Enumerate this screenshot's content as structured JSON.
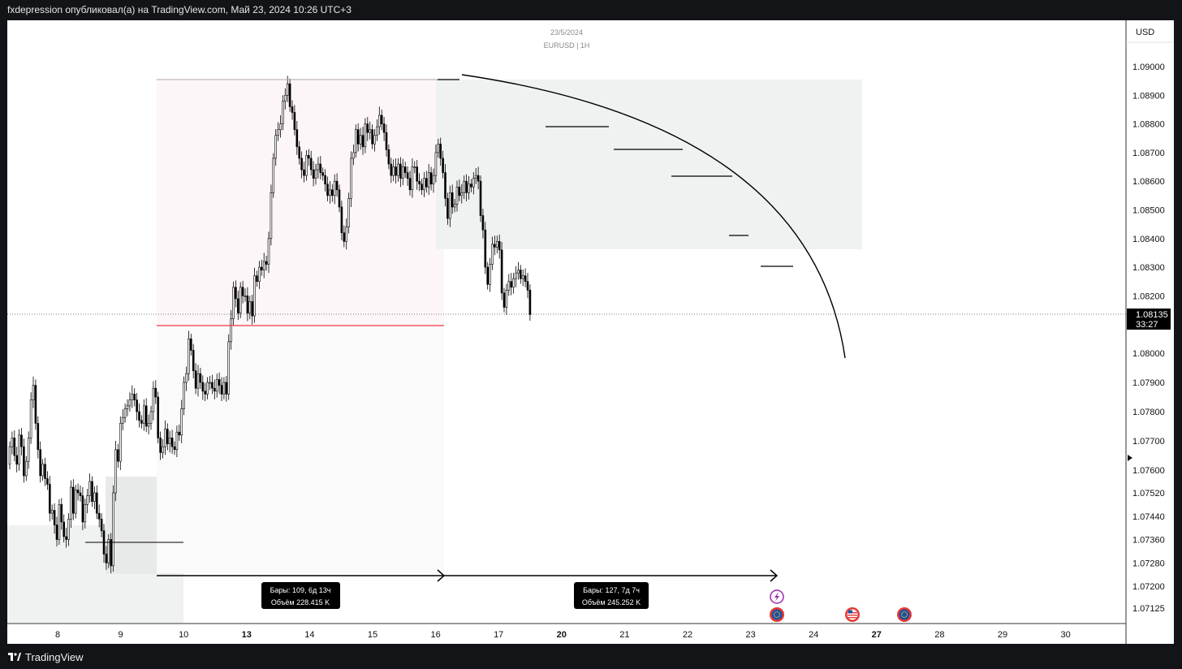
{
  "header": {
    "text": "fxdepression опубликовал(а) на TradingView.com, Май 23, 2024 10:26 UTC+3"
  },
  "footer": {
    "brand": "TradingView",
    "logo_icon": "tradingview-logo-icon"
  },
  "chart_data": {
    "type": "candlestick",
    "date": "23/5/2024",
    "symbol": "EURUSD | 1H",
    "currency": "USD",
    "y_ticks": [
      "1.09000",
      "1.08900",
      "1.08800",
      "1.08700",
      "1.08600",
      "1.08500",
      "1.08400",
      "1.08300",
      "1.08200",
      "1.08000",
      "1.07900",
      "1.07800",
      "1.07700",
      "1.07600",
      "1.07520",
      "1.07440",
      "1.07360",
      "1.07280",
      "1.07200",
      "1.07125"
    ],
    "x_ticks": [
      "8",
      "9",
      "10",
      "13",
      "14",
      "15",
      "16",
      "17",
      "20",
      "21",
      "22",
      "23",
      "24",
      "27",
      "28",
      "29",
      "30"
    ],
    "bold_x_ticks": [
      "13",
      "20",
      "27"
    ],
    "current_price": "1.08135",
    "countdown": "33:27",
    "candles_close": [
      1.0768,
      1.0771,
      1.0765,
      1.0762,
      1.0772,
      1.0768,
      1.0758,
      1.0763,
      1.0771,
      1.0784,
      1.0789,
      1.0776,
      1.0767,
      1.0758,
      1.0762,
      1.0757,
      1.0755,
      1.0745,
      1.0746,
      1.0741,
      1.0736,
      1.0748,
      1.0742,
      1.0737,
      1.0736,
      1.0743,
      1.0754,
      1.0745,
      1.0753,
      1.0752,
      1.0751,
      1.0742,
      1.0748,
      1.0751,
      1.0756,
      1.0749,
      1.0752,
      1.0745,
      1.0743,
      1.0739,
      1.0731,
      1.0728,
      1.0736,
      1.0727,
      1.0752,
      1.0767,
      1.0763,
      1.0776,
      1.0778,
      1.0781,
      1.0782,
      1.0784,
      1.0786,
      1.0784,
      1.078,
      1.0777,
      1.0776,
      1.0782,
      1.0775,
      1.0776,
      1.078,
      1.0788,
      1.0785,
      1.0771,
      1.0766,
      1.0768,
      1.0774,
      1.0769,
      1.0771,
      1.0768,
      1.0767,
      1.0773,
      1.0772,
      1.0781,
      1.079,
      1.0793,
      1.0805,
      1.0801,
      1.0794,
      1.0788,
      1.0793,
      1.079,
      1.0787,
      1.0786,
      1.079,
      1.079,
      1.0788,
      1.0787,
      1.0791,
      1.0789,
      1.0786,
      1.079,
      1.0786,
      1.0804,
      1.0812,
      1.0823,
      1.0819,
      1.0814,
      1.0823,
      1.082,
      1.082,
      1.0814,
      1.0818,
      1.0813,
      1.0827,
      1.0825,
      1.083,
      1.0829,
      1.0832,
      1.0831,
      1.084,
      1.0856,
      1.0868,
      1.0876,
      1.0878,
      1.088,
      1.0888,
      1.089,
      1.0894,
      1.0886,
      1.0884,
      1.0878,
      1.0872,
      1.0868,
      1.0864,
      1.0862,
      1.0869,
      1.0868,
      1.0864,
      1.0861,
      1.0864,
      1.0866,
      1.0863,
      1.0862,
      1.0859,
      1.0855,
      1.0857,
      1.0855,
      1.086,
      1.0857,
      1.0851,
      1.0842,
      1.0839,
      1.0844,
      1.0854,
      1.0868,
      1.087,
      1.0878,
      1.0873,
      1.0876,
      1.0872,
      1.088,
      1.0877,
      1.0878,
      1.0873,
      1.0876,
      1.0879,
      1.0883,
      1.088,
      1.0877,
      1.0871,
      1.0866,
      1.0862,
      1.0865,
      1.0862,
      1.0866,
      1.0861,
      1.0865,
      1.0863,
      1.0861,
      1.0857,
      1.0865,
      1.0865,
      1.086,
      1.0859,
      1.0857,
      1.0861,
      1.0858,
      1.0863,
      1.0859,
      1.0862,
      1.087,
      1.0873,
      1.0868,
      1.0863,
      1.0854,
      1.0847,
      1.0856,
      1.0851,
      1.0852,
      1.0858,
      1.0855,
      1.0856,
      1.086,
      1.0856,
      1.0859,
      1.0858,
      1.0861,
      1.0862,
      1.086,
      1.0848,
      1.0843,
      1.083,
      1.0824,
      1.0831,
      1.0838,
      1.0837,
      1.0839,
      1.0836,
      1.0821,
      1.0816,
      1.0822,
      1.0825,
      1.0823,
      1.0826,
      1.0828,
      1.0829,
      1.0826,
      1.0827,
      1.0825,
      1.0822,
      1.08135
    ],
    "annotations": {
      "bars_label_1": "Бары: 109, 6д 13ч",
      "volume_label_1": "Объём 228.415 K",
      "bars_label_2": "Бары: 127, 7д 7ч",
      "volume_label_2": "Объём 245.252 K"
    },
    "colors": {
      "candle": "#000000",
      "red_level": "#f23645",
      "box": "#f0f2f1",
      "pink_box": "#fdf6f8",
      "price_tag": "#000000"
    },
    "event_icons": [
      "lightning-event-icon",
      "eu-flag-icon",
      "us-flag-icon",
      "eu-flag-icon"
    ]
  }
}
